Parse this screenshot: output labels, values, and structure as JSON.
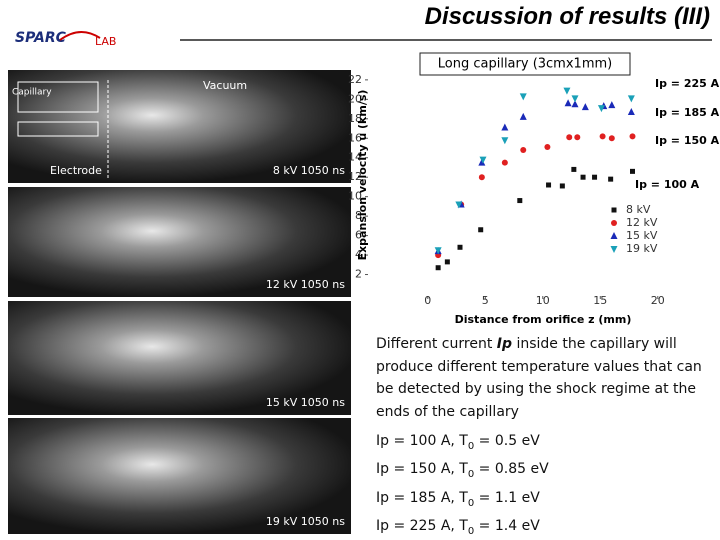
{
  "header": {
    "title": "Discussion of results (III)",
    "logo": {
      "left": "SPARC",
      "right": "LAB"
    }
  },
  "images": [
    {
      "labels": [
        "Vacuum",
        "Capillary",
        "Electrode"
      ],
      "caption": "8 kV   1050 ns"
    },
    {
      "caption": "12 kV   1050 ns"
    },
    {
      "caption": "15 kV   1050 ns"
    },
    {
      "caption": "19 kV   1050 ns"
    }
  ],
  "chart_data": {
    "type": "scatter",
    "title": "Long capillary (3cmx1mm)",
    "x_label": "Distance from orifice z (mm)",
    "y_label": "Expansion velocity u (km/s)",
    "xlim": [
      -5.2,
      22.8
    ],
    "xticks": [
      0,
      5,
      10,
      15,
      20
    ],
    "ylim": [
      0,
      22.5
    ],
    "yticks": [
      2,
      4,
      6,
      8,
      10,
      12,
      14,
      16,
      18,
      20,
      22
    ],
    "annotations": [
      "Ip = 225 A",
      "Ip = 185 A",
      "Ip = 150 A",
      "Ip = 100 A"
    ],
    "series": [
      {
        "name": "8 kV",
        "color": "#111111",
        "marker": "square",
        "x": [
          0.9,
          1.7,
          2.8,
          4.6,
          8.0,
          10.5,
          11.7,
          12.7,
          13.5,
          14.5,
          15.9,
          17.8
        ],
        "values": [
          2.7,
          3.3,
          4.8,
          6.6,
          9.6,
          11.2,
          11.1,
          12.8,
          12.0,
          12.0,
          11.8,
          12.6
        ]
      },
      {
        "name": "12 kV",
        "color": "#e02020",
        "marker": "circle",
        "x": [
          0.9,
          2.9,
          4.7,
          6.7,
          8.3,
          10.4,
          12.3,
          13.0,
          15.2,
          16.0,
          17.8
        ],
        "values": [
          4.0,
          9.2,
          12.0,
          13.5,
          14.8,
          15.1,
          16.1,
          16.1,
          16.2,
          16.0,
          16.2
        ]
      },
      {
        "name": "15 kV",
        "color": "#1a2ab8",
        "marker": "triangle",
        "x": [
          0.9,
          2.9,
          4.7,
          6.7,
          8.3,
          12.2,
          12.8,
          13.7,
          15.3,
          16.0,
          17.7
        ],
        "values": [
          4.4,
          9.2,
          13.5,
          17.1,
          18.2,
          19.6,
          19.5,
          19.2,
          19.3,
          19.4,
          18.7
        ]
      },
      {
        "name": "19 kV",
        "color": "#1aa0b8",
        "marker": "down",
        "x": [
          0.9,
          2.7,
          4.8,
          6.7,
          8.3,
          12.1,
          12.8,
          15.1,
          17.7
        ],
        "values": [
          4.5,
          9.2,
          13.8,
          15.8,
          20.3,
          20.9,
          20.1,
          19.1,
          20.1
        ]
      }
    ]
  },
  "text": {
    "paragraph": [
      "Different current ",
      "Ip",
      " inside the capillary will produce different temperature values that can be detected by using the shock regime at the ends of the capillary"
    ],
    "formulas": [
      {
        "a": "Ip = 100 A, T",
        "sub": "0",
        "b": " = 0.5 eV"
      },
      {
        "a": "Ip = 150 A, T",
        "sub": "0",
        "b": " = 0.85 eV"
      },
      {
        "a": "Ip = 185 A, T",
        "sub": "0",
        "b": " = 1.1 eV"
      },
      {
        "a": "Ip = 225 A, T",
        "sub": "0",
        "b": " = 1.4 eV"
      }
    ]
  }
}
